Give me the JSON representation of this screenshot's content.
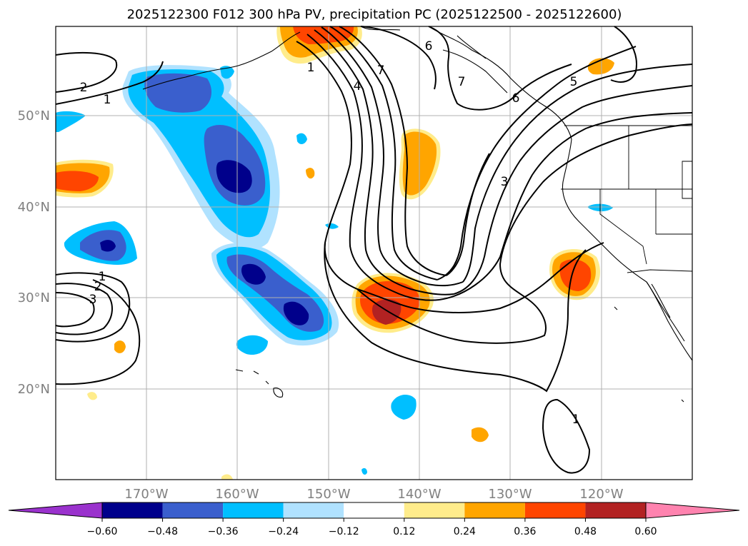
{
  "title": "2025122300 F012 300 hPa PV, precipitation PC (2025122500 - 2025122600)",
  "lat_labels": [
    "50°N",
    "40°N",
    "30°N",
    "20°N"
  ],
  "lon_labels": [
    "170°W",
    "160°W",
    "150°W",
    "140°W",
    "130°W",
    "120°W"
  ],
  "colorbar": {
    "colors": [
      "#9a32cd",
      "#00008b",
      "#3a5fcd",
      "#00bfff",
      "#b0e2ff",
      "#ffffff",
      "#ffec8b",
      "#ffa500",
      "#ff4500",
      "#b22222",
      "#ff83af"
    ],
    "tick_labels": [
      "−0.60",
      "−0.48",
      "−0.36",
      "−0.24",
      "−0.12",
      "0.12",
      "0.24",
      "0.36",
      "0.48",
      "0.60"
    ]
  },
  "contour_labels": [
    "2",
    "1",
    "1",
    "7",
    "4",
    "6",
    "7",
    "6",
    "5",
    "3",
    "1",
    "2",
    "3",
    "1"
  ],
  "fill_colors": {
    "dark_blue": "#00008b",
    "mid_blue": "#3a5fcd",
    "sky_blue": "#00bfff",
    "pale_blue": "#b0e2ff",
    "pale_yellow": "#ffec8b",
    "orange": "#ffa500",
    "red_orange": "#ff4500",
    "dark_red": "#b22222"
  }
}
